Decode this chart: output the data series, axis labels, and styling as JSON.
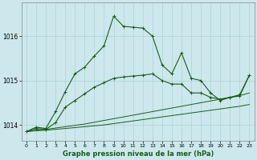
{
  "xlabel": "Graphe pression niveau de la mer (hPa)",
  "bg_color": "#cce8ec",
  "line_color": "#1a5c1a",
  "yticks": [
    1014,
    1015,
    1016
  ],
  "xticks": [
    0,
    1,
    2,
    3,
    4,
    5,
    6,
    7,
    8,
    9,
    10,
    11,
    12,
    13,
    14,
    15,
    16,
    17,
    18,
    19,
    20,
    21,
    22,
    23
  ],
  "ylim": [
    1013.65,
    1016.75
  ],
  "xlim": [
    -0.5,
    23.5
  ],
  "series1": [
    1013.85,
    1013.95,
    1013.92,
    1014.3,
    1014.75,
    1015.15,
    1015.3,
    1015.55,
    1015.78,
    1016.45,
    1016.22,
    1016.2,
    1016.18,
    1016.0,
    1015.35,
    1015.15,
    1015.62,
    1015.05,
    1015.0,
    1014.72,
    1014.55,
    1014.62,
    1014.68,
    1015.12
  ],
  "series2": [
    1013.85,
    1013.92,
    1013.9,
    1014.05,
    1014.4,
    1014.55,
    1014.7,
    1014.85,
    1014.95,
    1015.05,
    1015.08,
    1015.1,
    1015.12,
    1015.15,
    1015.0,
    1014.92,
    1014.92,
    1014.72,
    1014.72,
    1014.62,
    1014.58,
    1014.62,
    1014.65,
    1015.12
  ],
  "series3": [
    1013.85,
    1013.88,
    1013.9,
    1013.93,
    1013.96,
    1013.99,
    1014.02,
    1014.06,
    1014.1,
    1014.14,
    1014.18,
    1014.22,
    1014.26,
    1014.3,
    1014.34,
    1014.38,
    1014.42,
    1014.46,
    1014.5,
    1014.54,
    1014.58,
    1014.62,
    1014.66,
    1014.72
  ],
  "series4": [
    1013.85,
    1013.87,
    1013.88,
    1013.9,
    1013.92,
    1013.94,
    1013.96,
    1013.98,
    1014.0,
    1014.03,
    1014.06,
    1014.09,
    1014.12,
    1014.15,
    1014.18,
    1014.21,
    1014.24,
    1014.27,
    1014.3,
    1014.33,
    1014.36,
    1014.39,
    1014.42,
    1014.46
  ]
}
